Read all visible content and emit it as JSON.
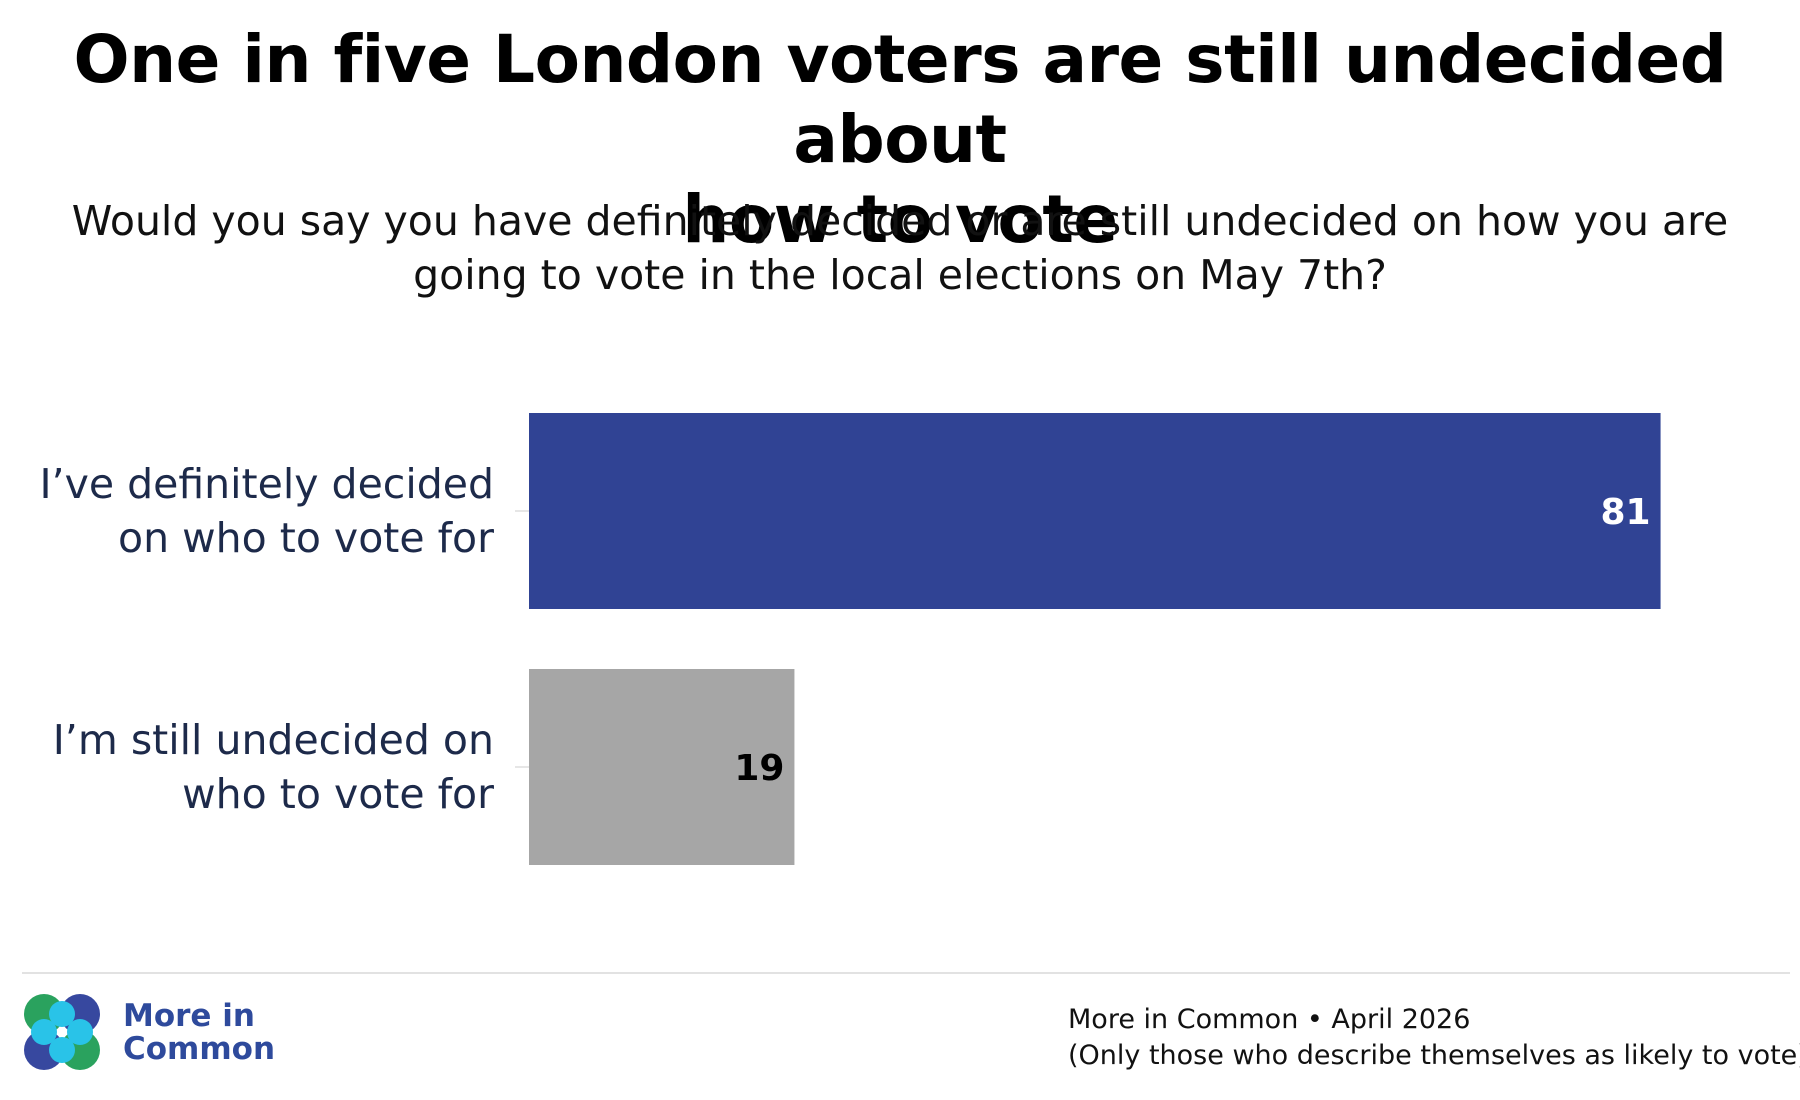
{
  "title_line1": "One in five London voters are still undecided about",
  "title_line2": "how to vote",
  "subtitle_line1": "Would you say you have definitely decided or are still undecided on how you are",
  "subtitle_line2": "going to vote in the local elections on May 7th?",
  "colors": {
    "decided": "#304394",
    "undecided": "#a6a6a6",
    "label_text": "#1d2a4a",
    "brand": "#2e4a9c"
  },
  "chart_data": {
    "type": "bar",
    "orientation": "horizontal",
    "categories": [
      [
        "I’ve definitely decided",
        "on who to vote for"
      ],
      [
        "I’m still undecided on",
        "who to vote for"
      ]
    ],
    "values": [
      81,
      19
    ],
    "value_labels": [
      "81",
      "19"
    ],
    "bar_colors": [
      "#304394",
      "#a6a6a6"
    ],
    "value_label_colors": [
      "#ffffff",
      "#000000"
    ],
    "xlim": [
      0,
      100
    ],
    "grid": false,
    "legend": "none"
  },
  "footer": {
    "logo_line1": "More in",
    "logo_line2": "Common",
    "source_line1": "More in Common • April 2026",
    "source_line2": "(Only those who describe themselves as likely to vote)"
  }
}
